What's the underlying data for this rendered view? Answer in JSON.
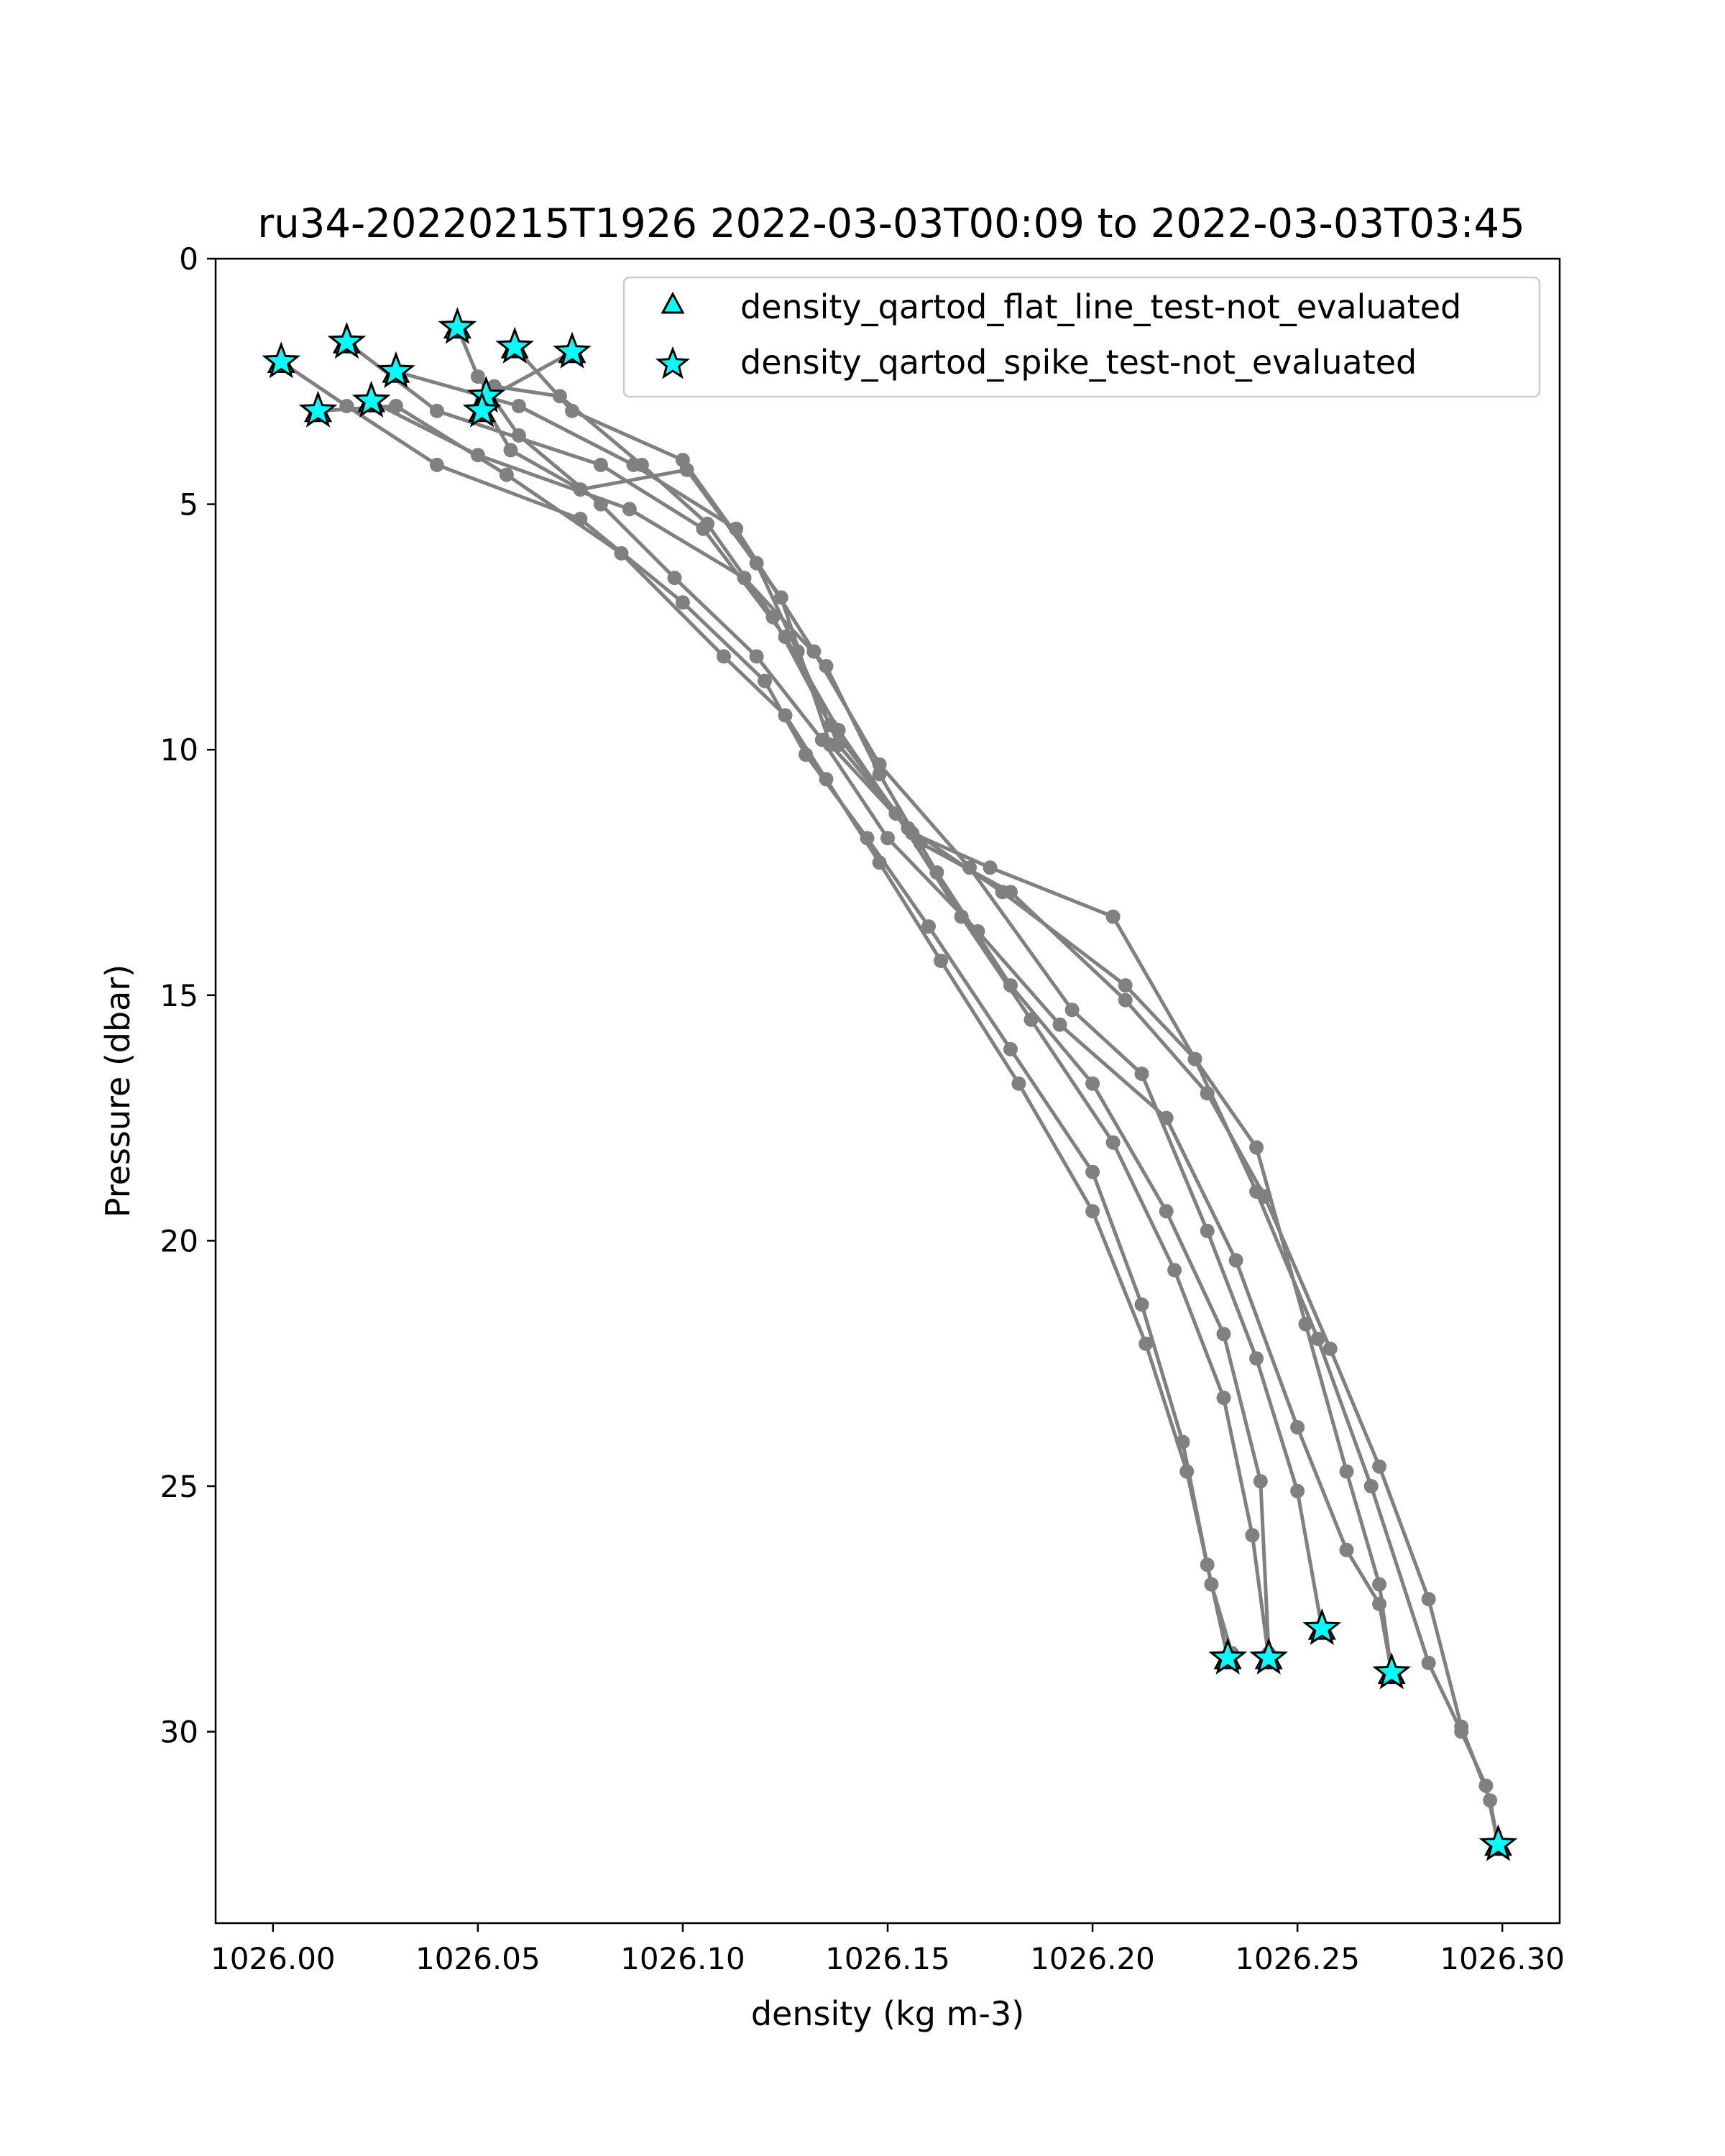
{
  "chart_data": {
    "type": "line",
    "title": "ru34-20220215T1926 2022-03-03T00:09 to 2022-03-03T03:45",
    "xlabel": "density (kg m-3)",
    "ylabel": "Pressure (dbar)",
    "xlim": [
      1025.986,
      1026.314
    ],
    "ylim": [
      33.9,
      0
    ],
    "y_inverted": true,
    "x_ticks": [
      1026.0,
      1026.05,
      1026.1,
      1026.15,
      1026.2,
      1026.25,
      1026.3
    ],
    "x_tick_labels": [
      "1026.00",
      "1026.05",
      "1026.10",
      "1026.15",
      "1026.20",
      "1026.25",
      "1026.30"
    ],
    "y_ticks": [
      0,
      5,
      10,
      15,
      20,
      25,
      30
    ],
    "y_tick_labels": [
      "0",
      "5",
      "10",
      "15",
      "20",
      "25",
      "30"
    ],
    "grid": false,
    "legend_position": "top-right",
    "line_color": "#808080",
    "flag_color": "#00ffff",
    "legend": [
      {
        "label": "density_qartod_flat_line_test-not_evaluated",
        "marker": "triangle"
      },
      {
        "label": "density_qartod_spike_test-not_evaluated",
        "marker": "star"
      }
    ],
    "series": [
      {
        "x": [
          1026.002,
          1026.018,
          1026.04,
          1026.075,
          1026.1,
          1026.12,
          1026.13,
          1026.145,
          1026.16,
          1026.18,
          1026.2,
          1026.212,
          1026.222,
          1026.228,
          1026.233
        ],
        "y": [
          2.1,
          3.0,
          4.2,
          5.3,
          7.0,
          8.6,
          10.1,
          11.8,
          13.6,
          16.1,
          18.6,
          21.3,
          24.1,
          26.6,
          28.5
        ]
      },
      {
        "x": [
          1026.011,
          1026.03,
          1026.057,
          1026.085,
          1026.11,
          1026.125,
          1026.135,
          1026.148,
          1026.163,
          1026.182,
          1026.2,
          1026.213,
          1026.223,
          1026.229,
          1026.234
        ],
        "y": [
          3.1,
          3.0,
          4.4,
          6.0,
          8.1,
          9.3,
          10.6,
          12.3,
          14.3,
          16.8,
          19.4,
          22.1,
          24.7,
          27.0,
          28.4
        ]
      },
      {
        "x": [
          1026.018,
          1026.04,
          1026.08,
          1026.105,
          1026.125,
          1026.138,
          1026.152,
          1026.168,
          1026.185,
          1026.205,
          1026.22,
          1026.232,
          1026.239,
          1026.243
        ],
        "y": [
          1.7,
          3.1,
          4.2,
          5.5,
          7.7,
          9.6,
          11.3,
          13.4,
          15.5,
          18.0,
          20.6,
          23.2,
          26.0,
          28.5
        ]
      },
      {
        "x": [
          1026.024,
          1026.05,
          1026.087,
          1026.115,
          1026.135,
          1026.148,
          1026.162,
          1026.18,
          1026.2,
          1026.218,
          1026.232,
          1026.241,
          1026.243
        ],
        "y": [
          2.9,
          4.0,
          5.1,
          6.5,
          8.3,
          10.5,
          12.5,
          14.8,
          16.8,
          19.4,
          21.9,
          24.9,
          28.4
        ]
      },
      {
        "x": [
          1026.03,
          1026.06,
          1026.088,
          1026.113,
          1026.132,
          1026.148,
          1026.17,
          1026.195,
          1026.212,
          1026.228,
          1026.24,
          1026.25,
          1026.256
        ],
        "y": [
          2.3,
          3.0,
          4.2,
          5.5,
          8.0,
          10.3,
          12.4,
          15.3,
          16.6,
          19.8,
          22.4,
          25.1,
          27.9
        ]
      },
      {
        "x": [
          1026.045,
          1026.05,
          1026.06,
          1026.08,
          1026.098,
          1026.118,
          1026.134,
          1026.15,
          1026.172,
          1026.192,
          1026.218,
          1026.235,
          1026.25,
          1026.262,
          1026.27,
          1026.273
        ],
        "y": [
          1.4,
          2.4,
          3.6,
          5.0,
          6.5,
          8.1,
          9.8,
          11.8,
          13.7,
          15.6,
          17.5,
          20.4,
          23.8,
          26.3,
          27.4,
          28.8
        ]
      },
      {
        "x": [
          1026.052,
          1026.054,
          1026.07,
          1026.09,
          1026.106,
          1026.122,
          1026.136,
          1026.155,
          1026.178,
          1026.208,
          1026.225,
          1026.24,
          1026.252,
          1026.262,
          1026.27,
          1026.273
        ],
        "y": [
          2.8,
          2.6,
          2.8,
          4.2,
          5.4,
          7.3,
          9.5,
          11.6,
          12.9,
          14.8,
          16.3,
          18.1,
          21.7,
          24.7,
          27.0,
          28.8
        ]
      },
      {
        "x": [
          1026.059,
          1026.073,
          1026.1,
          1026.118,
          1026.128,
          1026.138,
          1026.158,
          1026.18,
          1026.208,
          1026.228,
          1026.242,
          1026.258,
          1026.27,
          1026.282,
          1026.29,
          1026.297,
          1026.299
        ],
        "y": [
          1.8,
          3.1,
          4.1,
          6.2,
          8.0,
          9.9,
          11.9,
          12.9,
          15.1,
          17.0,
          19.1,
          22.2,
          24.6,
          27.3,
          29.9,
          31.4,
          32.3
        ]
      },
      {
        "x": [
          1026.073,
          1026.051,
          1026.058,
          1026.075,
          1026.101,
          1026.124,
          1026.136,
          1026.156,
          1026.175,
          1026.205,
          1026.225,
          1026.24,
          1026.255,
          1026.268,
          1026.282,
          1026.29,
          1026.296,
          1026.299
        ],
        "y": [
          1.9,
          2.9,
          3.9,
          4.7,
          4.3,
          6.9,
          9.9,
          11.7,
          12.4,
          13.4,
          16.3,
          19.0,
          22.0,
          25.0,
          28.6,
          30.0,
          31.1,
          32.3
        ]
      }
    ],
    "spike_flags": [
      {
        "x": 1026.002,
        "y": 2.1
      },
      {
        "x": 1026.011,
        "y": 3.1
      },
      {
        "x": 1026.018,
        "y": 1.7
      },
      {
        "x": 1026.024,
        "y": 2.9
      },
      {
        "x": 1026.03,
        "y": 2.3
      },
      {
        "x": 1026.045,
        "y": 1.4
      },
      {
        "x": 1026.052,
        "y": 2.8
      },
      {
        "x": 1026.051,
        "y": 3.1
      },
      {
        "x": 1026.059,
        "y": 1.8
      },
      {
        "x": 1026.073,
        "y": 1.9
      },
      {
        "x": 1026.233,
        "y": 28.5
      },
      {
        "x": 1026.243,
        "y": 28.5
      },
      {
        "x": 1026.256,
        "y": 27.9
      },
      {
        "x": 1026.273,
        "y": 28.8
      },
      {
        "x": 1026.299,
        "y": 32.3
      }
    ]
  }
}
